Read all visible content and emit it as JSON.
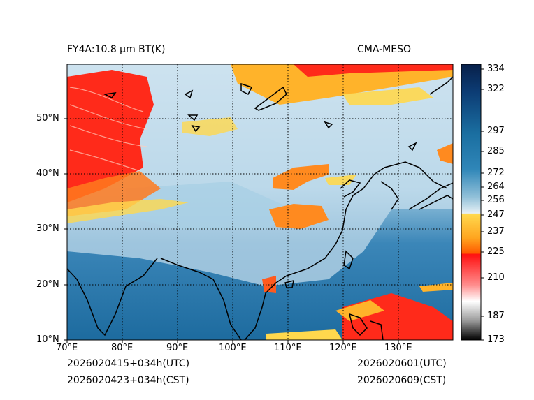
{
  "header": {
    "title_left": "FY4A:10.8 µm BT(K)",
    "title_right": "CMA-MESO"
  },
  "footer": {
    "init_utc": "2026020415+034h(UTC)",
    "init_cst": "2026020423+034h(CST)",
    "valid_utc": "2026020601(UTC)",
    "valid_cst": "2026020609(CST)"
  },
  "map": {
    "lat_labels": [
      "50°N",
      "40°N",
      "30°N",
      "20°N",
      "10°N"
    ],
    "lon_labels": [
      "70°E",
      "80°E",
      "90°E",
      "100°E",
      "110°E",
      "120°E",
      "130°E"
    ],
    "gridlines": "dotted"
  },
  "colorbar": {
    "unit": "K",
    "tick_labels": [
      "334",
      "322",
      "297",
      "285",
      "272",
      "264",
      "256",
      "247",
      "237",
      "225",
      "210",
      "187",
      "173"
    ],
    "range": [
      173,
      334
    ]
  },
  "colors": {
    "warm_sea": "#1f6fa3",
    "cloud_cold": "#ff1a1a",
    "cloud_mid": "#ffa51f",
    "cloud_thin": "#ffe066",
    "clear_land": "#cfe3ef"
  }
}
